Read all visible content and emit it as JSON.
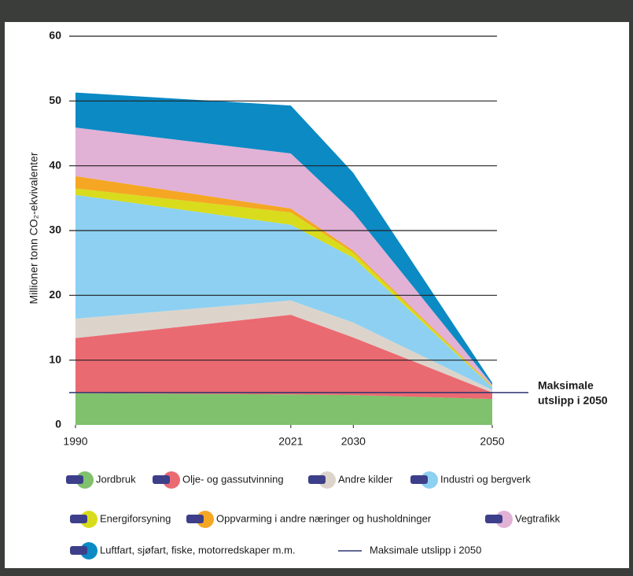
{
  "chart_data": {
    "type": "stacked-area",
    "y_label": "Millioner tonn CO₂-ekvivalenter",
    "x": [
      1990,
      2021,
      2030,
      2050
    ],
    "xlim": [
      1990,
      2050
    ],
    "xticks": [
      1990,
      2021,
      2030,
      2050
    ],
    "ylim": [
      0,
      60
    ],
    "yticks": [
      0,
      10,
      20,
      30,
      40,
      50,
      60
    ],
    "grid": true,
    "series": [
      {
        "name": "Jordbruk",
        "color": "#7fc16c",
        "values": [
          4.9,
          4.7,
          4.6,
          4.0
        ]
      },
      {
        "name": "Olje- og gassutvinning",
        "color": "#ea6a72",
        "values": [
          8.5,
          12.3,
          8.9,
          1.0
        ]
      },
      {
        "name": "Andre kilder",
        "color": "#dcd4cb",
        "values": [
          3.0,
          2.2,
          2.3,
          0.4
        ]
      },
      {
        "name": "Industri og bergverk",
        "color": "#8dd0f2",
        "values": [
          19.1,
          11.7,
          10.0,
          0.4
        ]
      },
      {
        "name": "Energiforsyning",
        "color": "#d8dc1c",
        "values": [
          1.0,
          1.9,
          0.8,
          0.1
        ]
      },
      {
        "name": "Oppvarming i andre næringer og husholdninger",
        "color": "#f5a623",
        "values": [
          1.9,
          0.6,
          0.3,
          0.1
        ]
      },
      {
        "name": "Vegtrafikk",
        "color": "#e1b1d6",
        "values": [
          7.5,
          8.5,
          5.9,
          0.2
        ]
      },
      {
        "name": "Luftfart, sjøfart, fiske, motorredskaper m.m.",
        "color": "#0b8ac4",
        "values": [
          5.4,
          7.4,
          6.1,
          0.3
        ]
      }
    ],
    "threshold": {
      "value": 5,
      "color": "#2f3470",
      "label": "Maksimale utslipp i 2050",
      "annotation": [
        "Maksimale",
        "utslipp i 2050"
      ]
    }
  }
}
